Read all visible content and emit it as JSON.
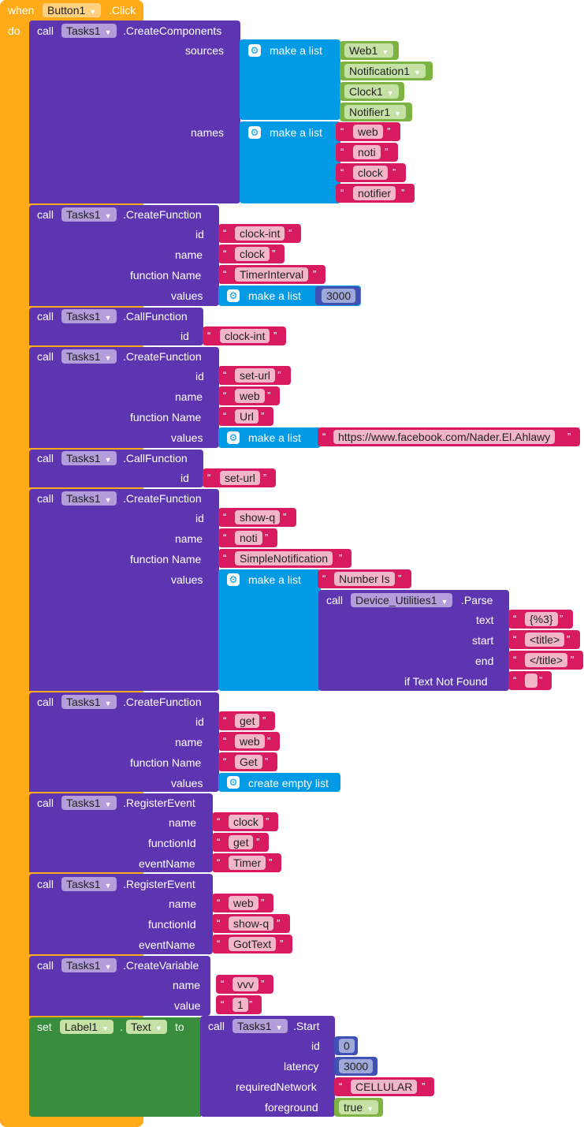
{
  "event": {
    "when": "when",
    "component": "Button1",
    "event": ".Click",
    "do": "do"
  },
  "blocks": {
    "cc": {
      "call": "call",
      "comp": "Tasks1",
      "method": ".CreateComponents",
      "sources": "sources",
      "names": "names",
      "make_list": "make a list",
      "src": [
        "Web1",
        "Notification1",
        "Clock1",
        "Notifier1"
      ],
      "nm": [
        "web",
        "noti",
        "clock",
        "notifier"
      ]
    },
    "cf1": {
      "call": "call",
      "comp": "Tasks1",
      "method": ".CreateFunction",
      "id_l": "id",
      "name_l": "name",
      "fn_l": "function Name",
      "val_l": "values",
      "id": "clock-int",
      "name": "clock",
      "fn": "TimerInterval",
      "make_list": "make a list",
      "num": "3000"
    },
    "call1": {
      "call": "call",
      "comp": "Tasks1",
      "method": ".CallFunction",
      "id_l": "id",
      "id": "clock-int"
    },
    "cf2": {
      "call": "call",
      "comp": "Tasks1",
      "method": ".CreateFunction",
      "id_l": "id",
      "name_l": "name",
      "fn_l": "function Name",
      "val_l": "values",
      "id": "set-url",
      "name": "web",
      "fn": "Url",
      "make_list": "make a list",
      "url": "https://www.facebook.com/Nader.El.Ahlawy"
    },
    "call2": {
      "call": "call",
      "comp": "Tasks1",
      "method": ".CallFunction",
      "id_l": "id",
      "id": "set-url"
    },
    "cf3": {
      "call": "call",
      "comp": "Tasks1",
      "method": ".CreateFunction",
      "id_l": "id",
      "name_l": "name",
      "fn_l": "function Name",
      "val_l": "values",
      "id": "show-q",
      "name": "noti",
      "fn": "SimpleNotification",
      "make_list": "make a list",
      "item1": "Number Is",
      "parse": {
        "call": "call",
        "comp": "Device_Utilities1",
        "method": ".Parse",
        "text_l": "text",
        "start_l": "start",
        "end_l": "end",
        "nf_l": "if Text Not Found",
        "text": "{%3}",
        "start": "<title>",
        "end": "</title>",
        "nf": " "
      }
    },
    "cf4": {
      "call": "call",
      "comp": "Tasks1",
      "method": ".CreateFunction",
      "id_l": "id",
      "name_l": "name",
      "fn_l": "function Name",
      "val_l": "values",
      "id": "get",
      "name": "web",
      "fn": "Get",
      "empty": "create empty list"
    },
    "re1": {
      "call": "call",
      "comp": "Tasks1",
      "method": ".RegisterEvent",
      "name_l": "name",
      "fid_l": "functionId",
      "ev_l": "eventName",
      "name": "clock",
      "fid": "get",
      "ev": "Timer"
    },
    "re2": {
      "call": "call",
      "comp": "Tasks1",
      "method": ".RegisterEvent",
      "name_l": "name",
      "fid_l": "functionId",
      "ev_l": "eventName",
      "name": "web",
      "fid": "show-q",
      "ev": "GotText"
    },
    "cv": {
      "call": "call",
      "comp": "Tasks1",
      "method": ".CreateVariable",
      "name_l": "name",
      "val_l": "value",
      "name": "vvv",
      "val": "1"
    },
    "set": {
      "set": "set",
      "comp": "Label1",
      "dot": ".",
      "prop": "Text",
      "to": "to",
      "call": "call",
      "tcomp": "Tasks1",
      "tmethod": ".Start",
      "id_l": "id",
      "lat_l": "latency",
      "rn_l": "requiredNetwork",
      "fg_l": "foreground",
      "id": "0",
      "lat": "3000",
      "rn": "CELLULAR",
      "fg": "true"
    }
  },
  "colors": {
    "event": "#ffab19",
    "procedure": "#5e35b1",
    "list": "#039be5",
    "text": "#d81b60",
    "component": "#7cb342",
    "setter": "#388e3c",
    "math": "#3f51b5"
  }
}
